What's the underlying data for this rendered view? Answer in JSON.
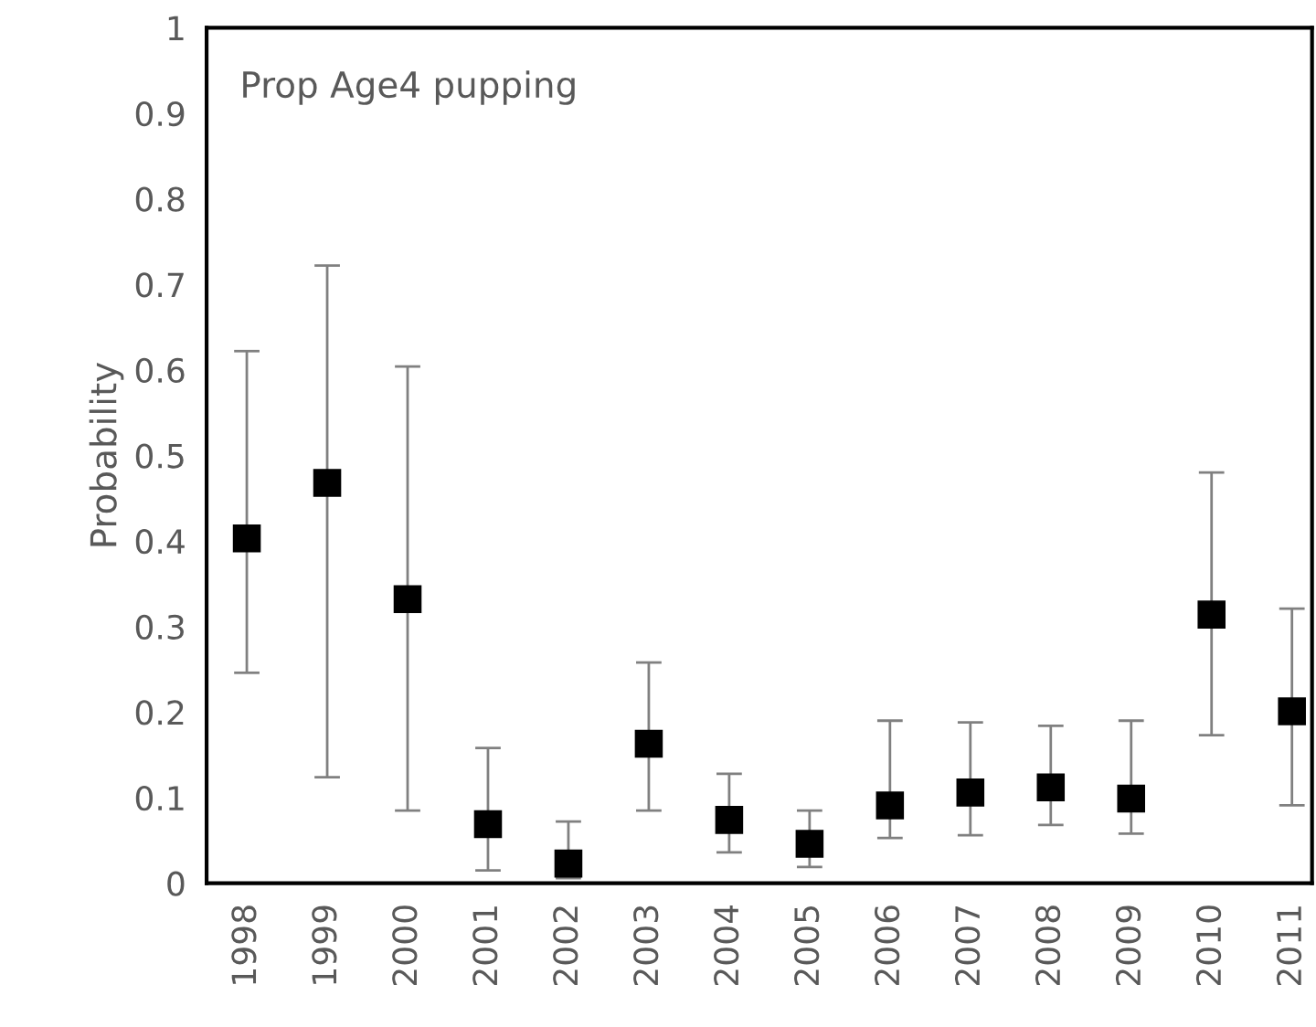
{
  "chart_data": {
    "type": "scatter",
    "title": "Prop Age4 pupping",
    "ylabel": "Probability",
    "categories": [
      "1998",
      "1999",
      "2000",
      "2001",
      "2002",
      "2003",
      "2004",
      "2005",
      "2006",
      "2007",
      "2008",
      "2009",
      "2010",
      "2011"
    ],
    "series": [
      {
        "color": "#000000",
        "marker": "square",
        "values": [
          0.403,
          0.468,
          0.332,
          0.069,
          0.023,
          0.163,
          0.074,
          0.046,
          0.091,
          0.106,
          0.112,
          0.099,
          0.314,
          0.201
        ],
        "errors": [
          [
            0.246,
            0.622
          ],
          [
            0.124,
            0.722
          ],
          [
            0.085,
            0.604
          ],
          [
            0.015,
            0.158
          ],
          [
            0.006,
            0.072
          ],
          [
            0.085,
            0.258
          ],
          [
            0.036,
            0.128
          ],
          [
            0.019,
            0.085
          ],
          [
            0.053,
            0.19
          ],
          [
            0.056,
            0.188
          ],
          [
            0.068,
            0.184
          ],
          [
            0.058,
            0.19
          ],
          [
            0.173,
            0.48
          ],
          [
            0.091,
            0.321
          ]
        ]
      }
    ],
    "ylim": [
      0,
      1
    ],
    "yticks": [
      0,
      0.1,
      0.2,
      0.3,
      0.4,
      0.5,
      0.6,
      0.7,
      0.8,
      0.9,
      1
    ],
    "grid": false,
    "legend": false
  }
}
